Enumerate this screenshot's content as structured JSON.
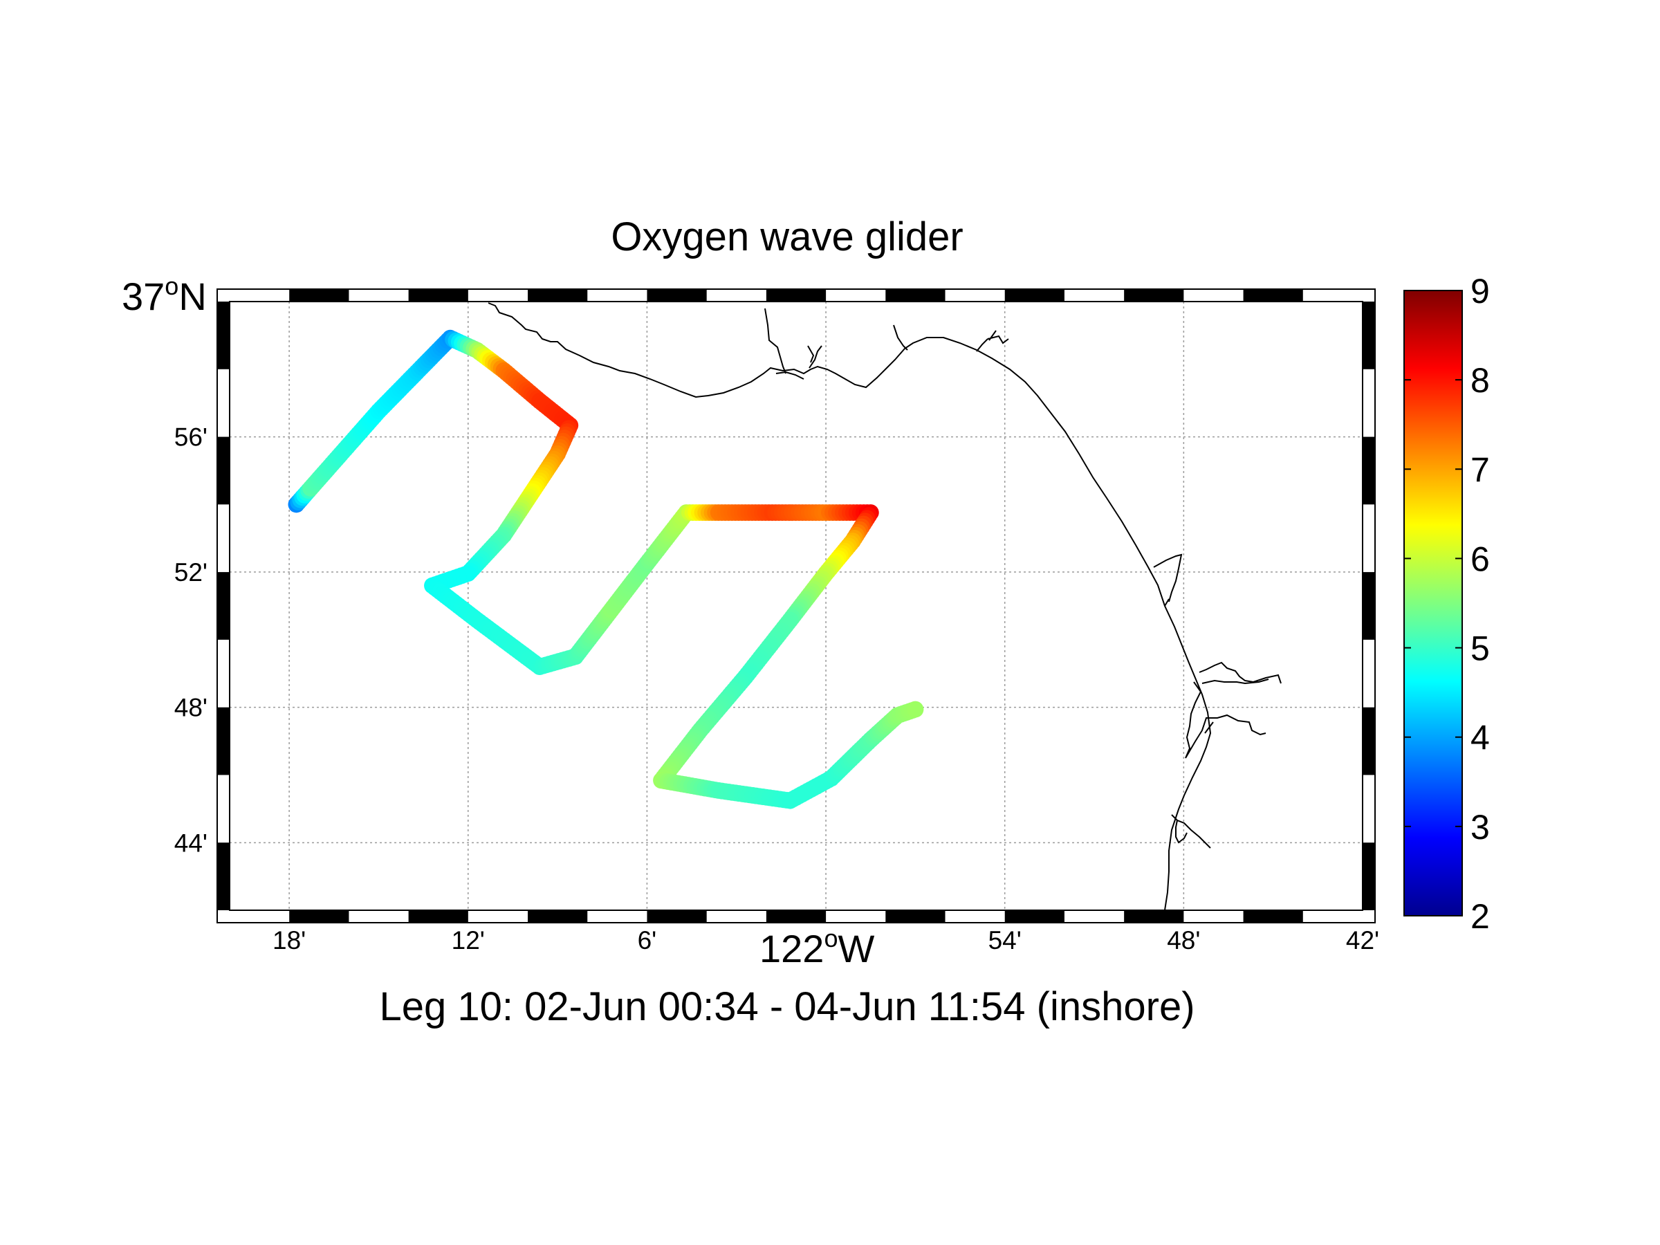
{
  "chart_data": {
    "type": "scatter",
    "title": "Oxygen wave glider",
    "subtitle": "Leg 10: 02-Jun 00:34 - 04-Jun 11:54 (inshore)",
    "x_major_label": {
      "deg": "122",
      "sup": "o",
      "hemi": "W"
    },
    "y_major_label": {
      "deg": "37",
      "sup": "o",
      "hemi": "N"
    },
    "xlim": [
      -122.3333,
      -121.7
    ],
    "ylim": [
      36.7,
      37.0
    ],
    "x_ticks": [
      {
        "value": -122.3,
        "label": "18'"
      },
      {
        "value": -122.2,
        "label": "12'"
      },
      {
        "value": -122.1,
        "label": "6'"
      },
      {
        "value": -122.0,
        "label": ""
      },
      {
        "value": -121.9,
        "label": "54'"
      },
      {
        "value": -121.8,
        "label": "48'"
      },
      {
        "value": -121.7,
        "label": "42'"
      }
    ],
    "y_ticks": [
      {
        "value": 36.9333,
        "label": "56'"
      },
      {
        "value": 36.8667,
        "label": "52'"
      },
      {
        "value": 36.8,
        "label": "48'"
      },
      {
        "value": 36.7333,
        "label": "44'"
      }
    ],
    "grid": true,
    "colorbar": {
      "min": 2,
      "max": 9,
      "ticks": [
        2,
        3,
        4,
        5,
        6,
        7,
        8,
        9
      ],
      "colormap": "jet"
    },
    "track": [
      {
        "lon": -122.296,
        "lat": 36.9,
        "o2": 3.8
      },
      {
        "lon": -122.288,
        "lat": 36.908,
        "o2": 5.2
      },
      {
        "lon": -122.27,
        "lat": 36.926,
        "o2": 4.9
      },
      {
        "lon": -122.25,
        "lat": 36.946,
        "o2": 4.6
      },
      {
        "lon": -122.23,
        "lat": 36.964,
        "o2": 4.4
      },
      {
        "lon": -122.21,
        "lat": 36.982,
        "o2": 3.9
      },
      {
        "lon": -122.195,
        "lat": 36.976,
        "o2": 5.7
      },
      {
        "lon": -122.18,
        "lat": 36.966,
        "o2": 7.3
      },
      {
        "lon": -122.16,
        "lat": 36.951,
        "o2": 7.8
      },
      {
        "lon": -122.143,
        "lat": 36.939,
        "o2": 7.9
      },
      {
        "lon": -122.15,
        "lat": 36.925,
        "o2": 7.2
      },
      {
        "lon": -122.165,
        "lat": 36.905,
        "o2": 6.3
      },
      {
        "lon": -122.18,
        "lat": 36.885,
        "o2": 5.2
      },
      {
        "lon": -122.2,
        "lat": 36.866,
        "o2": 4.7
      },
      {
        "lon": -122.22,
        "lat": 36.86,
        "o2": 4.7
      },
      {
        "lon": -122.195,
        "lat": 36.843,
        "o2": 4.8
      },
      {
        "lon": -122.16,
        "lat": 36.82,
        "o2": 4.9
      },
      {
        "lon": -122.14,
        "lat": 36.825,
        "o2": 5.1
      },
      {
        "lon": -122.12,
        "lat": 36.848,
        "o2": 5.6
      },
      {
        "lon": -122.1,
        "lat": 36.871,
        "o2": 5.4
      },
      {
        "lon": -122.078,
        "lat": 36.896,
        "o2": 5.9
      },
      {
        "lon": -122.06,
        "lat": 36.896,
        "o2": 7.3
      },
      {
        "lon": -122.03,
        "lat": 36.896,
        "o2": 7.7
      },
      {
        "lon": -122.0,
        "lat": 36.896,
        "o2": 7.3
      },
      {
        "lon": -121.975,
        "lat": 36.896,
        "o2": 8.2
      },
      {
        "lon": -121.985,
        "lat": 36.882,
        "o2": 6.9
      },
      {
        "lon": -122.0,
        "lat": 36.866,
        "o2": 6.0
      },
      {
        "lon": -122.02,
        "lat": 36.843,
        "o2": 5.2
      },
      {
        "lon": -122.045,
        "lat": 36.815,
        "o2": 5.0
      },
      {
        "lon": -122.07,
        "lat": 36.789,
        "o2": 5.3
      },
      {
        "lon": -122.092,
        "lat": 36.764,
        "o2": 5.7
      },
      {
        "lon": -122.06,
        "lat": 36.759,
        "o2": 5.1
      },
      {
        "lon": -122.02,
        "lat": 36.754,
        "o2": 4.9
      },
      {
        "lon": -121.997,
        "lat": 36.765,
        "o2": 4.9
      },
      {
        "lon": -121.975,
        "lat": 36.784,
        "o2": 5.2
      },
      {
        "lon": -121.96,
        "lat": 36.796,
        "o2": 5.6
      },
      {
        "lon": -121.95,
        "lat": 36.799,
        "o2": 5.7
      }
    ]
  }
}
